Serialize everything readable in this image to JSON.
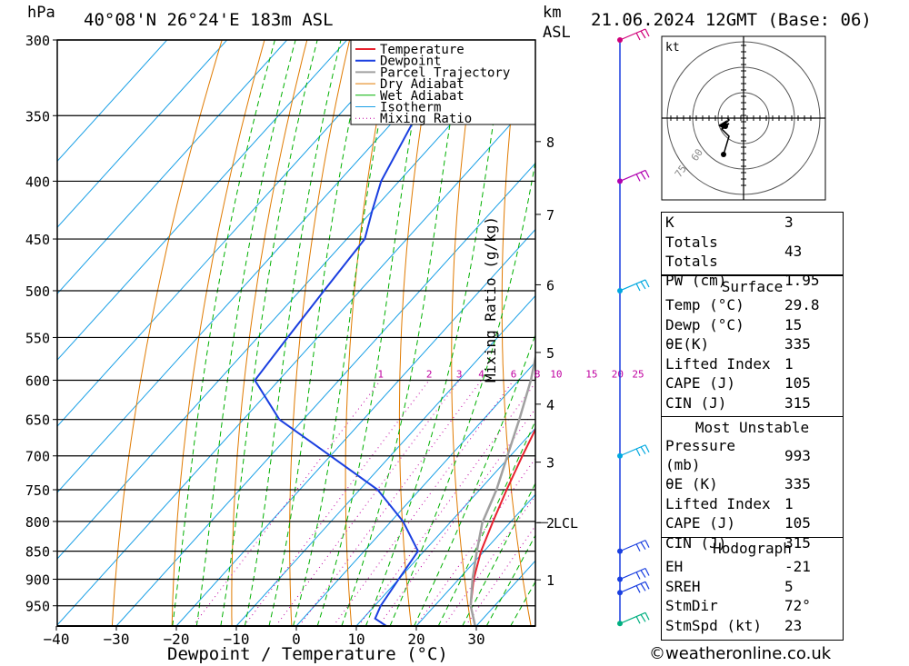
{
  "header": {
    "pressure_unit": "hPa",
    "location": "40°08'N 26°24'E 183m ASL",
    "km_label": "km",
    "asl_label": "ASL",
    "datetime": "21.06.2024 12GMT (Base: 06)"
  },
  "chart_data": {
    "type": "line",
    "subtype": "skew-T log-P diagram",
    "xlabel": "Dewpoint / Temperature (°C)",
    "ylabel": "hPa",
    "right_axis_label": "Mixing Ratio (g/kg)",
    "x_ticks": [
      -40,
      -30,
      -20,
      -10,
      0,
      10,
      20,
      30
    ],
    "y_ticks": [
      300,
      350,
      400,
      450,
      500,
      550,
      600,
      650,
      700,
      750,
      800,
      850,
      900,
      950
    ],
    "km_ticks": [
      "8",
      "7",
      "6",
      "5",
      "4",
      "3",
      "2",
      "1"
    ],
    "km_ticks_pressure": [
      369,
      428,
      494,
      567,
      630,
      709,
      802,
      901
    ],
    "lcl_label": "LCL",
    "lcl_pressure": 802,
    "mixing_ratio_labels": [
      "1",
      "2",
      "3",
      "4",
      "6",
      "8",
      "10",
      "15",
      "20",
      "25"
    ],
    "mixing_ratio_values": [
      1,
      2,
      3,
      4,
      6,
      8,
      10,
      15,
      20,
      25
    ],
    "legend": [
      "Temperature",
      "Dewpoint",
      "Parcel Trajectory",
      "Dry Adiabat",
      "Wet Adiabat",
      "Isotherm",
      "Mixing Ratio"
    ],
    "colors": {
      "temperature": "#e8212e",
      "dewpoint": "#1a3fe0",
      "parcel": "#a0a0a0",
      "dry_adiabat": "#e07a00",
      "wet_adiabat": "#00b000",
      "isotherm": "#1aa0e6",
      "mixing_ratio": "#c000a0"
    },
    "series": [
      {
        "name": "Temperature",
        "points": [
          [
            990,
            29.8
          ],
          [
            950,
            26
          ],
          [
            900,
            22.5
          ],
          [
            850,
            19.5
          ],
          [
            800,
            17
          ],
          [
            750,
            14.5
          ],
          [
            700,
            12
          ],
          [
            650,
            9.5
          ],
          [
            600,
            4.5
          ],
          [
            550,
            -1.5
          ],
          [
            500,
            -7.5
          ],
          [
            450,
            -13
          ],
          [
            400,
            -19.5
          ],
          [
            350,
            -27.5
          ],
          [
            300,
            -37
          ]
        ]
      },
      {
        "name": "Dewpoint",
        "points": [
          [
            990,
            15
          ],
          [
            975,
            12
          ],
          [
            950,
            11
          ],
          [
            900,
            10
          ],
          [
            850,
            9
          ],
          [
            800,
            2
          ],
          [
            750,
            -7
          ],
          [
            700,
            -20
          ],
          [
            650,
            -34
          ],
          [
            600,
            -44
          ],
          [
            550,
            -45
          ],
          [
            500,
            -46
          ],
          [
            450,
            -47
          ],
          [
            425,
            -50
          ],
          [
            400,
            -53
          ],
          [
            350,
            -57
          ],
          [
            300,
            -60
          ]
        ]
      },
      {
        "name": "Parcel Trajectory",
        "points": [
          [
            990,
            29.8
          ],
          [
            950,
            26
          ],
          [
            900,
            22.3
          ],
          [
            850,
            18.8
          ],
          [
            802,
            15.4
          ],
          [
            750,
            12.8
          ],
          [
            700,
            9.5
          ],
          [
            650,
            6
          ],
          [
            600,
            2
          ],
          [
            550,
            -3
          ],
          [
            500,
            -8.2
          ],
          [
            450,
            -13.5
          ],
          [
            400,
            -19.8
          ],
          [
            350,
            -27
          ],
          [
            300,
            -35.5
          ]
        ]
      }
    ]
  },
  "wind_profile": [
    {
      "pressure": 300,
      "color": "#d0007a"
    },
    {
      "pressure": 400,
      "color": "#b000b0"
    },
    {
      "pressure": 500,
      "color": "#00a8e0"
    },
    {
      "pressure": 700,
      "color": "#00a8e0"
    },
    {
      "pressure": 850,
      "color": "#1a3fe0"
    },
    {
      "pressure": 900,
      "color": "#1a3fe0"
    },
    {
      "pressure": 925,
      "color": "#1a3fe0"
    },
    {
      "pressure": 985,
      "color": "#00b080"
    }
  ],
  "hodograph": {
    "unit_label": "kt",
    "ring_labels": [
      "60",
      "75"
    ]
  },
  "indices": {
    "basic": [
      {
        "label": "K",
        "value": "3"
      },
      {
        "label": "Totals Totals",
        "value": "43"
      },
      {
        "label": "PW (cm)",
        "value": "1.95"
      }
    ],
    "surface_title": "Surface",
    "surface": [
      {
        "label": "Temp (°C)",
        "value": "29.8"
      },
      {
        "label": "Dewp (°C)",
        "value": "15"
      },
      {
        "label": "θE(K)",
        "value": "335"
      },
      {
        "label": "Lifted Index",
        "value": "1"
      },
      {
        "label": "CAPE (J)",
        "value": "105"
      },
      {
        "label": "CIN (J)",
        "value": "315"
      }
    ],
    "mu_title": "Most Unstable",
    "most_unstable": [
      {
        "label": "Pressure (mb)",
        "value": "993"
      },
      {
        "label": "θE (K)",
        "value": "335"
      },
      {
        "label": "Lifted Index",
        "value": "1"
      },
      {
        "label": "CAPE (J)",
        "value": "105"
      },
      {
        "label": "CIN (J)",
        "value": "315"
      }
    ],
    "hodo_title": "Hodograph",
    "hodograph": [
      {
        "label": "EH",
        "value": "-21"
      },
      {
        "label": "SREH",
        "value": "5"
      },
      {
        "label": "StmDir",
        "value": "72°"
      },
      {
        "label": "StmSpd (kt)",
        "value": "23"
      }
    ]
  },
  "copyright": "©weatheronline.co.uk"
}
